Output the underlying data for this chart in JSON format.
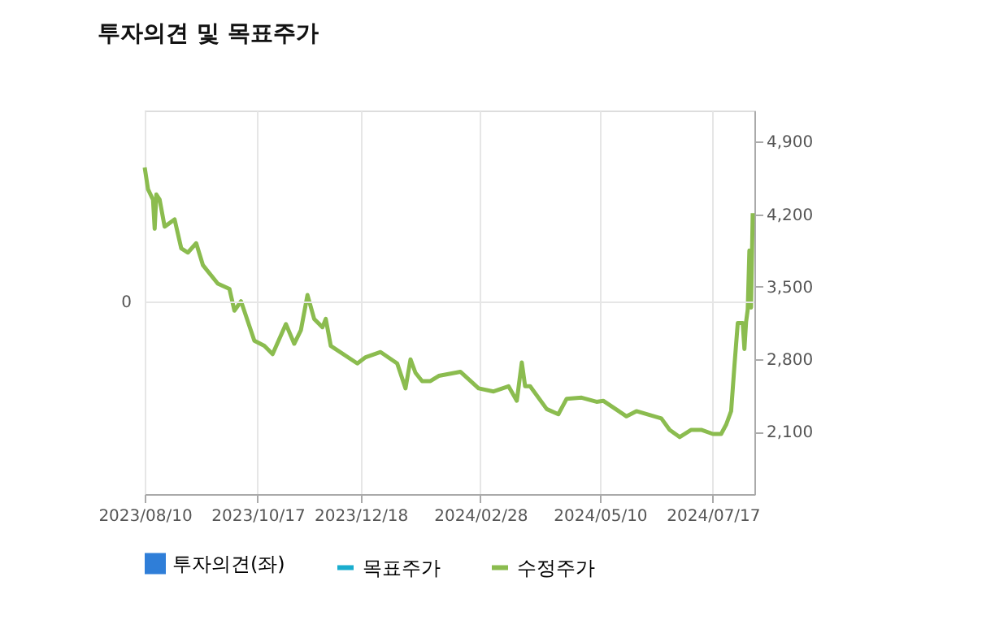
{
  "chart_data": {
    "type": "line",
    "title": "투자의견 및 목표주가",
    "annotations": [
      "0"
    ],
    "xlim": [
      "2023-08-10",
      "2024-08-11"
    ],
    "xticks": [
      {
        "value": "2023-08-10",
        "label": "2023/08/10"
      },
      {
        "value": "2023-10-17",
        "label": "2023/10/17"
      },
      {
        "value": "2023-12-18",
        "label": "2023/12/18"
      },
      {
        "value": "2024-02-28",
        "label": "2024/02/28"
      },
      {
        "value": "2024-05-10",
        "label": "2024/05/10"
      },
      {
        "value": "2024-07-17",
        "label": "2024/07/17"
      }
    ],
    "y2lim": [
      1500,
      5200
    ],
    "y2ticks": [
      {
        "value": 2100,
        "label": "2,100"
      },
      {
        "value": 2800,
        "label": "2,800"
      },
      {
        "value": 3500,
        "label": "3,500"
      },
      {
        "value": 4200,
        "label": "4,200"
      },
      {
        "value": 4900,
        "label": "4,900"
      }
    ],
    "grid": "x",
    "legend": "bottom",
    "series": [
      {
        "name": "투자의견(좌)",
        "type": "bar",
        "color": "#2f7ed8"
      },
      {
        "name": "목표주가",
        "color": "#1aadce",
        "axis": "y2"
      },
      {
        "name": "수정주가",
        "color": "#8bbc4f",
        "axis": "y2",
        "x": [
          "2023-08-10",
          "2023-08-12",
          "2023-08-15",
          "2023-08-16",
          "2023-08-17",
          "2023-08-19",
          "2023-08-22",
          "2023-08-28",
          "2023-09-01",
          "2023-09-05",
          "2023-09-10",
          "2023-09-14",
          "2023-09-23",
          "2023-09-30",
          "2023-10-03",
          "2023-10-07",
          "2023-10-15",
          "2023-10-21",
          "2023-10-26",
          "2023-11-03",
          "2023-11-08",
          "2023-11-12",
          "2023-11-16",
          "2023-11-20",
          "2023-11-25",
          "2023-11-27",
          "2023-11-30",
          "2023-12-16",
          "2023-12-21",
          "2023-12-30",
          "2024-01-09",
          "2024-01-14",
          "2024-01-17",
          "2024-01-20",
          "2024-01-24",
          "2024-01-29",
          "2024-02-03",
          "2024-02-16",
          "2024-02-27",
          "2024-03-07",
          "2024-03-16",
          "2024-03-21",
          "2024-03-24",
          "2024-03-26",
          "2024-03-29",
          "2024-04-08",
          "2024-04-15",
          "2024-04-20",
          "2024-04-29",
          "2024-05-08",
          "2024-05-12",
          "2024-05-26",
          "2024-06-01",
          "2024-06-16",
          "2024-06-21",
          "2024-06-27",
          "2024-07-04",
          "2024-07-10",
          "2024-07-17",
          "2024-07-22",
          "2024-07-25",
          "2024-07-28",
          "2024-07-30",
          "2024-08-01",
          "2024-08-04",
          "2024-08-05",
          "2024-08-06",
          "2024-08-07",
          "2024-08-08",
          "2024-08-09",
          "2024-08-10"
        ],
        "values": [
          4650,
          4440,
          4340,
          4060,
          4390,
          4340,
          4080,
          4150,
          3870,
          3830,
          3920,
          3710,
          3530,
          3480,
          3270,
          3360,
          2980,
          2930,
          2850,
          3140,
          2950,
          3080,
          3420,
          3190,
          3110,
          3190,
          2930,
          2760,
          2820,
          2870,
          2760,
          2520,
          2800,
          2670,
          2590,
          2590,
          2640,
          2680,
          2520,
          2490,
          2540,
          2400,
          2770,
          2540,
          2540,
          2320,
          2270,
          2420,
          2430,
          2390,
          2400,
          2250,
          2300,
          2230,
          2120,
          2050,
          2120,
          2120,
          2080,
          2080,
          2170,
          2300,
          2740,
          3150,
          3150,
          2900,
          3160,
          3280,
          3850,
          3300,
          4210
        ]
      }
    ]
  }
}
